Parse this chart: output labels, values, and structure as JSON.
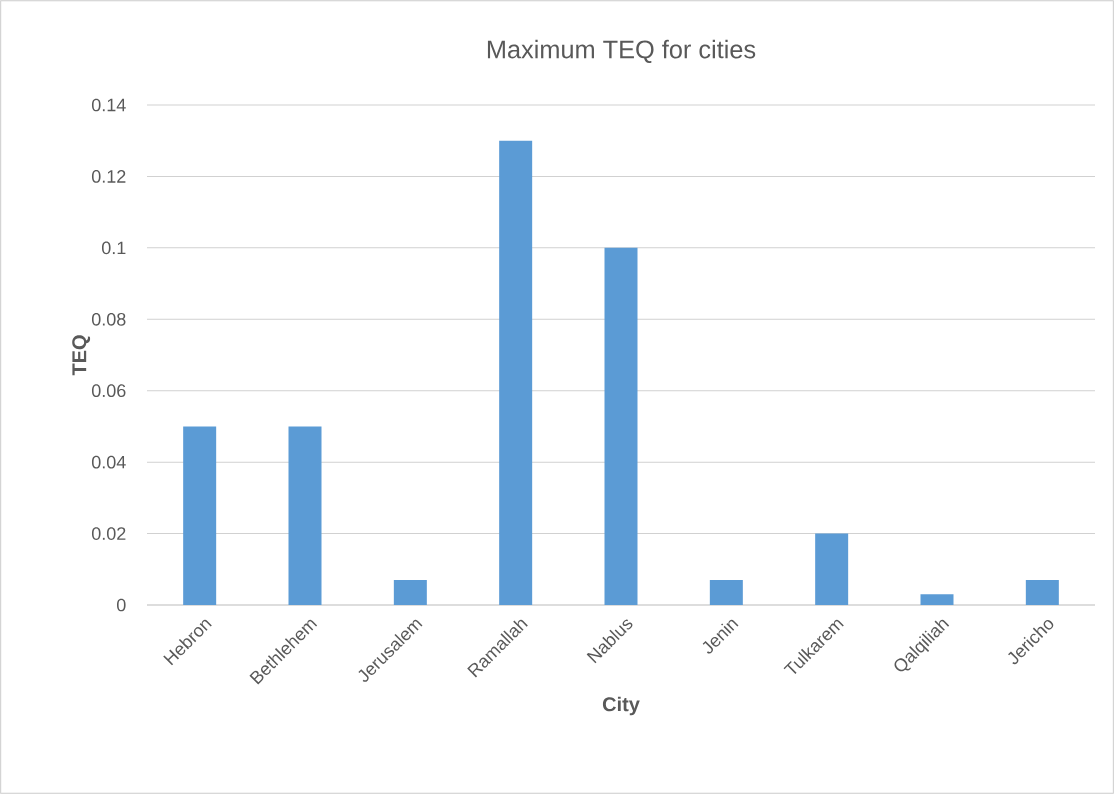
{
  "chart_data": {
    "type": "bar",
    "title": "Maximum TEQ for cities",
    "xlabel": "City",
    "ylabel": "TEQ",
    "categories": [
      "Hebron",
      "Bethlehem",
      "Jerusalem",
      "Ramallah",
      "Nablus",
      "Jenin",
      "Tulkarem",
      "Qalqiliah",
      "Jericho"
    ],
    "values": [
      0.05,
      0.05,
      0.007,
      0.13,
      0.1,
      0.007,
      0.02,
      0.003,
      0.007
    ],
    "color": "#5b9bd5",
    "ylim": [
      0,
      0.14
    ],
    "yticks": [
      0,
      0.02,
      0.04,
      0.06,
      0.08,
      0.1,
      0.12,
      0.14
    ],
    "grid": "y"
  }
}
